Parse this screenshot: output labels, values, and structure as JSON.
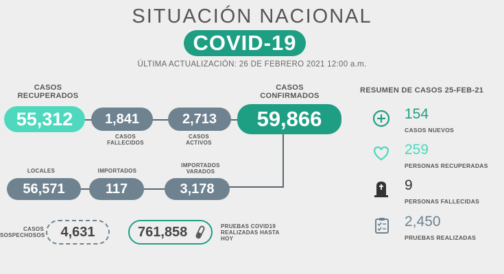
{
  "header": {
    "title": "SITUACIÓN NACIONAL",
    "badge": "COVID-19",
    "update": "ÚLTIMA ACTUALIZACIÓN: 26 DE FEBRERO 2021 12:00 a.m."
  },
  "stats": {
    "recuperados": {
      "label_1": "CASOS",
      "label_2": "RECUPERADOS",
      "value": "55,312"
    },
    "fallecidos": {
      "label_1": "CASOS",
      "label_2": "FALLECIDOS",
      "value": "1,841"
    },
    "activos": {
      "label_1": "CASOS",
      "label_2": "ACTIVOS",
      "value": "2,713"
    },
    "confirmados": {
      "label_1": "CASOS",
      "label_2": "CONFIRMADOS",
      "value": "59,866"
    },
    "locales": {
      "label": "LOCALES",
      "value": "56,571"
    },
    "importados": {
      "label": "IMPORTADOS",
      "value": "117"
    },
    "varados": {
      "label_1": "IMPORTADOS",
      "label_2": "VARADOS",
      "value": "3,178"
    },
    "sospechosos": {
      "label_1": "CASOS",
      "label_2": "SOSPECHOSOS",
      "value": "4,631"
    },
    "pruebas": {
      "label_1": "PRUEBAS COVID19",
      "label_2": "REALIZADAS HASTA HOY",
      "value": "761,858"
    }
  },
  "resumen": {
    "title": "RESUMEN DE CASOS 25-FEB-21",
    "items": [
      {
        "icon": "plus-circle-icon",
        "value": "154",
        "label": "CASOS NUEVOS",
        "color": "#1e9e83"
      },
      {
        "icon": "heart-icon",
        "value": "259",
        "label": "PERSONAS RECUPERADAS",
        "color": "#4ed8bd"
      },
      {
        "icon": "tombstone-icon",
        "value": "9",
        "label": "PERSONAS FALLECIDAS",
        "color": "#333333"
      },
      {
        "icon": "clipboard-check-icon",
        "value": "2,450",
        "label": "PRUEBAS REALIZADAS",
        "color": "#6e8290"
      }
    ]
  },
  "colors": {
    "teal": "#1e9e83",
    "mint": "#4ed8bd",
    "gray": "#6e8290",
    "background": "#eeeeee"
  }
}
